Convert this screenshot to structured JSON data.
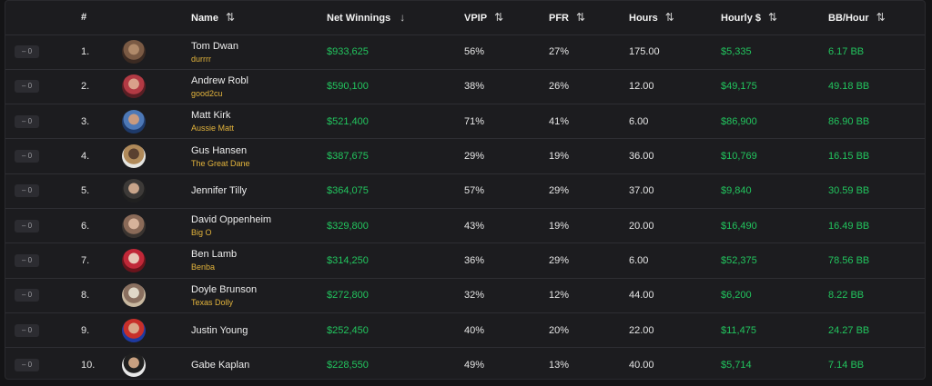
{
  "colors": {
    "green": "#22c55e",
    "alias": "#e2b33c",
    "panel": "#1c1c1f"
  },
  "table": {
    "headers": {
      "rank": "#",
      "name": "Name",
      "net_winnings": "Net Winnings",
      "vpip": "VPIP",
      "pfr": "PFR",
      "hours": "Hours",
      "hourly": "Hourly $",
      "bb_hour": "BB/Hour"
    },
    "sort_icons": {
      "default": "sort-both-icon",
      "active": "arrow-down-icon"
    },
    "rows": [
      {
        "change": "– 0",
        "rank": "1.",
        "name": "Tom Dwan",
        "alias": "durrrr",
        "net": "$933,625",
        "vpip": "56%",
        "pfr": "27%",
        "hours": "175.00",
        "hourly": "$5,335",
        "bb": "6.17 BB",
        "avatar_colors": [
          "#3b2a22",
          "#7a5a44",
          "#b08a6a"
        ]
      },
      {
        "change": "– 0",
        "rank": "2.",
        "name": "Andrew Robl",
        "alias": "good2cu",
        "net": "$590,100",
        "vpip": "38%",
        "pfr": "26%",
        "hours": "12.00",
        "hourly": "$49,175",
        "bb": "49.18 BB",
        "avatar_colors": [
          "#5a1e24",
          "#b23a44",
          "#d9a08a"
        ]
      },
      {
        "change": "– 0",
        "rank": "3.",
        "name": "Matt Kirk",
        "alias": "Aussie Matt",
        "net": "$521,400",
        "vpip": "71%",
        "pfr": "41%",
        "hours": "6.00",
        "hourly": "$86,900",
        "bb": "86.90 BB",
        "avatar_colors": [
          "#1e3a6a",
          "#4d78b6",
          "#c99a7e"
        ]
      },
      {
        "change": "– 0",
        "rank": "4.",
        "name": "Gus Hansen",
        "alias": "The Great Dane",
        "net": "$387,675",
        "vpip": "29%",
        "pfr": "19%",
        "hours": "36.00",
        "hourly": "$10,769",
        "bb": "16.15 BB",
        "avatar_colors": [
          "#e6e6e2",
          "#b08a5a",
          "#5a4030"
        ]
      },
      {
        "change": "– 0",
        "rank": "5.",
        "name": "Jennifer Tilly",
        "alias": "",
        "net": "$364,075",
        "vpip": "57%",
        "pfr": "29%",
        "hours": "37.00",
        "hourly": "$9,840",
        "bb": "30.59 BB",
        "avatar_colors": [
          "#202020",
          "#3d3a38",
          "#c8a48a"
        ]
      },
      {
        "change": "– 0",
        "rank": "6.",
        "name": "David Oppenheim",
        "alias": "Big O",
        "net": "$329,800",
        "vpip": "43%",
        "pfr": "19%",
        "hours": "20.00",
        "hourly": "$16,490",
        "bb": "16.49 BB",
        "avatar_colors": [
          "#3a3430",
          "#8a6a58",
          "#d6b29a"
        ]
      },
      {
        "change": "– 0",
        "rank": "7.",
        "name": "Ben Lamb",
        "alias": "Benba",
        "net": "$314,250",
        "vpip": "36%",
        "pfr": "29%",
        "hours": "6.00",
        "hourly": "$52,375",
        "bb": "78.56 BB",
        "avatar_colors": [
          "#6a141c",
          "#c02838",
          "#e6c8b8"
        ]
      },
      {
        "change": "– 0",
        "rank": "8.",
        "name": "Doyle Brunson",
        "alias": "Texas Dolly",
        "net": "$272,800",
        "vpip": "32%",
        "pfr": "12%",
        "hours": "44.00",
        "hourly": "$6,200",
        "bb": "8.22 BB",
        "avatar_colors": [
          "#c8b8a0",
          "#8a7060",
          "#e0d8c8"
        ]
      },
      {
        "change": "– 0",
        "rank": "9.",
        "name": "Justin Young",
        "alias": "",
        "net": "$252,450",
        "vpip": "40%",
        "pfr": "20%",
        "hours": "22.00",
        "hourly": "$11,475",
        "bb": "24.27 BB",
        "avatar_colors": [
          "#1e3aa0",
          "#c8302a",
          "#d9a88a"
        ]
      },
      {
        "change": "– 0",
        "rank": "10.",
        "name": "Gabe Kaplan",
        "alias": "",
        "net": "$228,550",
        "vpip": "49%",
        "pfr": "13%",
        "hours": "40.00",
        "hourly": "$5,714",
        "bb": "7.14 BB",
        "avatar_colors": [
          "#e8e8e8",
          "#202020",
          "#c8a080"
        ]
      }
    ]
  }
}
